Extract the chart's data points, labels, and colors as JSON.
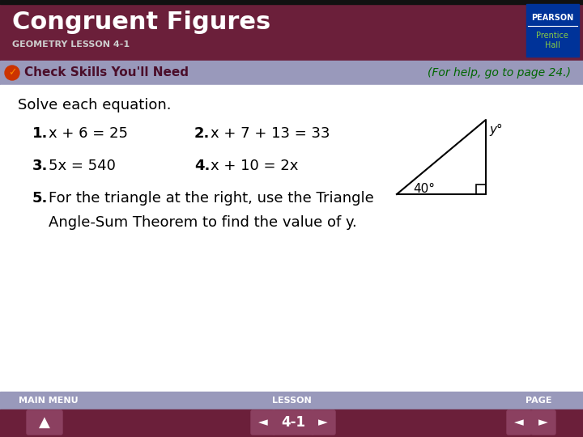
{
  "title": "Congruent Figures",
  "subtitle": "GEOMETRY LESSON 4-1",
  "header_bg": "#6B1F3A",
  "header_text_color": "#FFFFFF",
  "subtitle_color": "#CCCCCC",
  "banner_bg": "#9999BB",
  "banner_text": "Check Skills You'll Need",
  "banner_text_color": "#4B0E2A",
  "help_text": "(For help, go to page 24.)",
  "help_text_color": "#006600",
  "main_bg": "#FFFFFF",
  "body_text_color": "#000000",
  "intro": "Solve each equation.",
  "problems": [
    {
      "num": "1.",
      "text": "x + 6 = 25"
    },
    {
      "num": "2.",
      "text": "x + 7 + 13 = 33"
    },
    {
      "num": "3.",
      "text": "5x = 540"
    },
    {
      "num": "4.",
      "text": "x + 10 = 2x"
    },
    {
      "num": "5.",
      "text": "For the triangle at the right, use the Triangle"
    },
    {
      "num": "",
      "text": "Angle-Sum Theorem to find the value of y."
    }
  ],
  "footer_bg": "#9999BB",
  "footer_text_color": "#FFFFFF",
  "footer_items": [
    "MAIN MENU",
    "LESSON",
    "PAGE"
  ],
  "nav_bg": "#6B1F3A",
  "nav_button_color": "#8B4060",
  "nav_lesson": "4-1",
  "pearson_box_color": "#003399",
  "pearson_text": "PEARSON",
  "prentice_line1": "Prentice",
  "prentice_line2": "Hall"
}
